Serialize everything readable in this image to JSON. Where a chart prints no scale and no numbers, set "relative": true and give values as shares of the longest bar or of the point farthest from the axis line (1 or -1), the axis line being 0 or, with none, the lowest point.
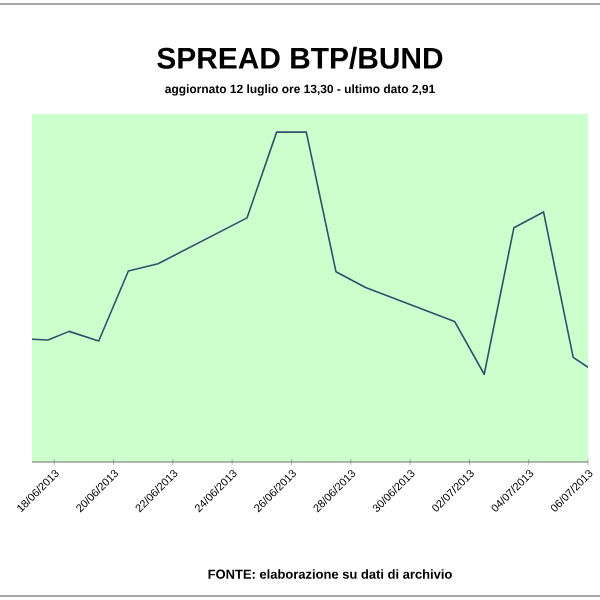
{
  "chart_data": {
    "type": "line",
    "title": "SPREAD BTP/BUND",
    "subtitle": "aggiornato 12 luglio ore 13,30 - ultimo dato 2,91",
    "relative": true,
    "x": [
      "2013-06-17T06:00",
      "2013-06-17T19:00",
      "2013-06-18T12:00",
      "2013-06-19T12:00",
      "2013-06-20T12:00",
      "2013-06-21T12:00",
      "2013-06-24T12:00",
      "2013-06-25T12:00",
      "2013-06-26T12:00",
      "2013-06-27T12:00",
      "2013-06-28T12:00",
      "2013-07-01T12:00",
      "2013-07-02T12:00",
      "2013-07-03T12:00",
      "2013-07-04T12:00",
      "2013-07-05T12:00",
      "2013-07-06T00:00"
    ],
    "series": [
      {
        "color": "#2f4f6f",
        "values": [
          0.372,
          0.37,
          0.396,
          0.367,
          0.579,
          0.601,
          0.74,
          1,
          1,
          0.577,
          0.529,
          0.426,
          0.266,
          0.71,
          0.758,
          0.317,
          0.287
        ]
      }
    ],
    "xlim": [
      "2013-06-17T06:00",
      "2013-07-06T00:00"
    ],
    "xticks": [
      {
        "value": "2013-06-18",
        "label": "18/06/2013"
      },
      {
        "value": "2013-06-20",
        "label": "20/06/2013"
      },
      {
        "value": "2013-06-22",
        "label": "22/06/2013"
      },
      {
        "value": "2013-06-24",
        "label": "24/06/2013"
      },
      {
        "value": "2013-06-26",
        "label": "26/06/2013"
      },
      {
        "value": "2013-06-28",
        "label": "28/06/2013"
      },
      {
        "value": "2013-06-30",
        "label": "30/06/2013"
      },
      {
        "value": "2013-07-02",
        "label": "02/07/2013"
      },
      {
        "value": "2013-07-04",
        "label": "04/07/2013"
      },
      {
        "value": "2013-07-06",
        "label": "06/07/2013"
      }
    ],
    "annotations": [
      "FONTE: elaborazione su dati di archivio"
    ],
    "marker": "none",
    "line_style": "solid"
  }
}
